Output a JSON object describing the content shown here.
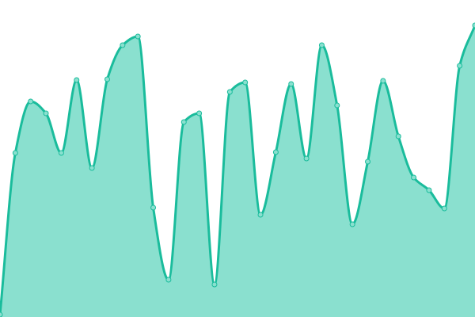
{
  "chart_data": {
    "type": "area",
    "title": "",
    "xlabel": "",
    "ylabel": "",
    "grid": false,
    "axes_visible": false,
    "curve": "smooth",
    "markers": true,
    "ylim": [
      0,
      400
    ],
    "x": [
      0,
      1,
      2,
      3,
      4,
      5,
      6,
      7,
      8,
      9,
      10,
      11,
      12,
      13,
      14,
      15,
      16,
      17,
      18,
      19,
      20,
      21,
      22,
      23,
      24,
      25,
      26,
      27,
      28,
      29,
      30,
      31
    ],
    "values": [
      3,
      207,
      272,
      257,
      207,
      299,
      188,
      300,
      343,
      354,
      138,
      47,
      246,
      257,
      41,
      284,
      296,
      129,
      208,
      294,
      200,
      343,
      267,
      117,
      196,
      298,
      228,
      176,
      160,
      137,
      317,
      368
    ],
    "colors": {
      "line": "#1abc9c",
      "fill": "#8ae0cf",
      "marker_fill": "#8ae0cf",
      "marker_stroke": "#1abc9c"
    }
  }
}
